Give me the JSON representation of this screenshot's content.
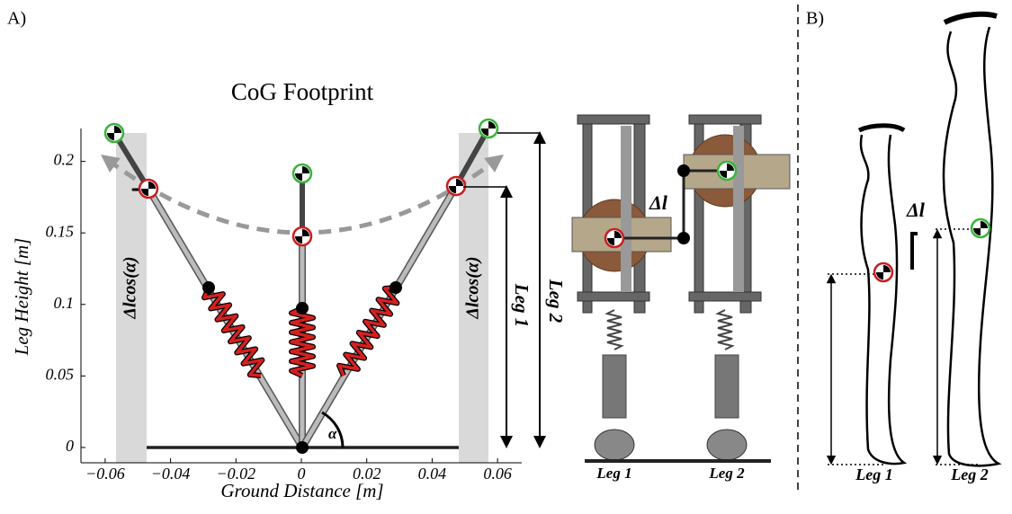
{
  "panel_a": {
    "label": "A)",
    "plot": {
      "title": "CoG Footprint",
      "xlabel": "Ground Distance [m]",
      "ylabel": "Leg Height [m]",
      "xlim": [
        -0.0674,
        0.0674
      ],
      "ylim": [
        -0.0107,
        0.223
      ],
      "xticks": [
        {
          "value": -0.06,
          "label": "−0.06"
        },
        {
          "value": -0.04,
          "label": "−0.04"
        },
        {
          "value": -0.02,
          "label": "−0.02"
        },
        0,
        0.02,
        0.04,
        0.06
      ],
      "yticks": [
        0,
        0.05,
        0.1,
        0.15,
        0.2
      ],
      "left_band_label": "Δlcos(α)",
      "right_band_label": "Δlcos(α)",
      "angle_label": "α",
      "leg1_label": "Leg 1",
      "leg2_label": "Leg 2"
    },
    "robot": {
      "delta_label": "Δl",
      "leg1_label": "Leg 1",
      "leg2_label": "Leg 2"
    }
  },
  "panel_b": {
    "label": "B)",
    "delta_label": "Δl",
    "leg1_label": "Leg 1",
    "leg2_label": "Leg 2"
  }
}
